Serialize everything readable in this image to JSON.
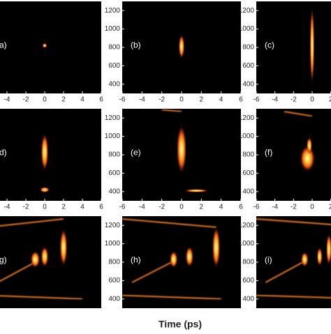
{
  "chart_data": {
    "type": "spectrogram-grid",
    "xlabel": "Time (ps)",
    "xlim": [
      -6,
      6
    ],
    "ylim": [
      300,
      1300
    ],
    "xticks": [
      -6,
      -4,
      -2,
      0,
      2,
      4,
      6
    ],
    "yticks": [
      400,
      600,
      800,
      1000,
      1200
    ],
    "panels": [
      {
        "label": "(a)"
      },
      {
        "label": "(b)"
      },
      {
        "label": "(c)"
      },
      {
        "label": "(d)"
      },
      {
        "label": "(e)"
      },
      {
        "label": "(f)"
      },
      {
        "label": "(g)"
      },
      {
        "label": "(h)"
      },
      {
        "label": "(i)"
      }
    ]
  }
}
